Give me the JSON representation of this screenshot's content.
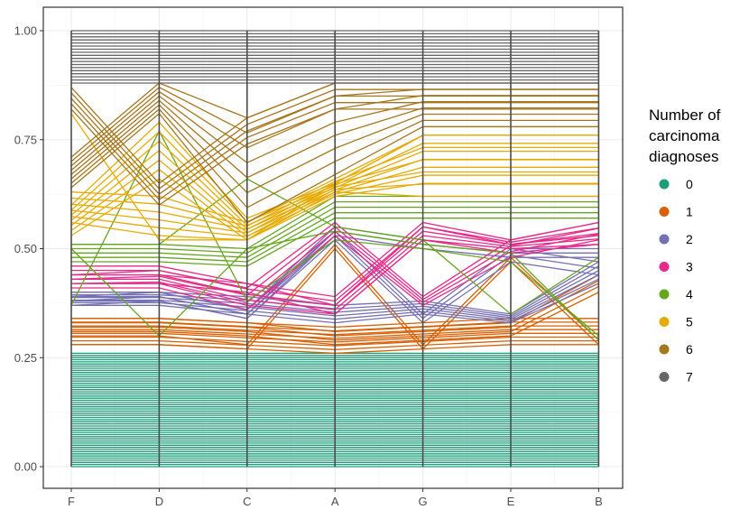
{
  "chart_data": {
    "type": "line",
    "subtype": "parallel-coordinates",
    "categories": [
      "F",
      "D",
      "C",
      "A",
      "G",
      "E",
      "B"
    ],
    "ylim": [
      0,
      1
    ],
    "y_ticks": [
      "0.00",
      "0.25",
      "0.50",
      "0.75",
      "1.00"
    ],
    "grid": true,
    "legend_placement": "right",
    "legend": {
      "title": [
        "Number of",
        "carcinoma",
        "diagnoses"
      ],
      "items": [
        {
          "label": "0",
          "color": "#1B9E77"
        },
        {
          "label": "1",
          "color": "#D95F02"
        },
        {
          "label": "2",
          "color": "#7570B3"
        },
        {
          "label": "3",
          "color": "#E7298A"
        },
        {
          "label": "4",
          "color": "#66A61E"
        },
        {
          "label": "5",
          "color": "#E6AB02"
        },
        {
          "label": "6",
          "color": "#A6761D"
        },
        {
          "label": "7",
          "color": "#666666"
        }
      ]
    },
    "bundles": [
      {
        "group": "0",
        "count": 54,
        "ranges": [
          [
            0,
            0.26
          ],
          [
            0,
            0.26
          ],
          [
            0,
            0.26
          ],
          [
            0,
            0.26
          ],
          [
            0,
            0.26
          ],
          [
            0,
            0.26
          ],
          [
            0,
            0.26
          ]
        ]
      },
      {
        "group": "1",
        "count": 8,
        "ranges": [
          [
            0.28,
            0.34
          ],
          [
            0.28,
            0.34
          ],
          [
            0.27,
            0.33
          ],
          [
            0.26,
            0.32
          ],
          [
            0.27,
            0.33
          ],
          [
            0.28,
            0.34
          ],
          [
            0.28,
            0.34
          ]
        ]
      },
      {
        "group": "1",
        "count": 2,
        "ranges": [
          [
            0.28,
            0.3
          ],
          [
            0.28,
            0.3
          ],
          [
            0.27,
            0.28
          ],
          [
            0.5,
            0.51
          ],
          [
            0.27,
            0.28
          ],
          [
            0.47,
            0.48
          ],
          [
            0.28,
            0.29
          ]
        ]
      },
      {
        "group": "1",
        "count": 4,
        "ranges": [
          [
            0.31,
            0.34
          ],
          [
            0.31,
            0.34
          ],
          [
            0.3,
            0.33
          ],
          [
            0.28,
            0.31
          ],
          [
            0.29,
            0.32
          ],
          [
            0.3,
            0.33
          ],
          [
            0.4,
            0.44
          ]
        ]
      },
      {
        "group": "2",
        "count": 6,
        "ranges": [
          [
            0.37,
            0.4
          ],
          [
            0.37,
            0.4
          ],
          [
            0.35,
            0.39
          ],
          [
            0.33,
            0.37
          ],
          [
            0.35,
            0.38
          ],
          [
            0.33,
            0.35
          ],
          [
            0.42,
            0.47
          ]
        ]
      },
      {
        "group": "2",
        "count": 3,
        "ranges": [
          [
            0.37,
            0.39
          ],
          [
            0.38,
            0.4
          ],
          [
            0.34,
            0.36
          ],
          [
            0.52,
            0.54
          ],
          [
            0.33,
            0.35
          ],
          [
            0.47,
            0.5
          ],
          [
            0.44,
            0.47
          ]
        ]
      },
      {
        "group": "2",
        "count": 3,
        "ranges": [
          [
            0.38,
            0.4
          ],
          [
            0.38,
            0.4
          ],
          [
            0.34,
            0.36
          ],
          [
            0.53,
            0.55
          ],
          [
            0.5,
            0.52
          ],
          [
            0.48,
            0.5
          ],
          [
            0.48,
            0.5
          ]
        ]
      },
      {
        "group": "3",
        "count": 5,
        "ranges": [
          [
            0.42,
            0.46
          ],
          [
            0.42,
            0.46
          ],
          [
            0.37,
            0.42
          ],
          [
            0.35,
            0.39
          ],
          [
            0.52,
            0.56
          ],
          [
            0.5,
            0.52
          ],
          [
            0.51,
            0.56
          ]
        ]
      },
      {
        "group": "3",
        "count": 4,
        "ranges": [
          [
            0.41,
            0.44
          ],
          [
            0.41,
            0.45
          ],
          [
            0.36,
            0.41
          ],
          [
            0.53,
            0.56
          ],
          [
            0.37,
            0.39
          ],
          [
            0.48,
            0.52
          ],
          [
            0.52,
            0.56
          ]
        ]
      },
      {
        "group": "3",
        "count": 2,
        "ranges": [
          [
            0.42,
            0.44
          ],
          [
            0.42,
            0.44
          ],
          [
            0.4,
            0.42
          ],
          [
            0.35,
            0.37
          ],
          [
            0.52,
            0.55
          ],
          [
            0.49,
            0.51
          ],
          [
            0.51,
            0.53
          ]
        ]
      },
      {
        "group": "4",
        "count": 5,
        "ranges": [
          [
            0.47,
            0.51
          ],
          [
            0.47,
            0.51
          ],
          [
            0.46,
            0.5
          ],
          [
            0.57,
            0.62
          ],
          [
            0.57,
            0.62
          ],
          [
            0.57,
            0.62
          ],
          [
            0.57,
            0.62
          ]
        ]
      },
      {
        "group": "4",
        "count": 1,
        "ranges": [
          [
            0.37,
            0.37
          ],
          [
            0.77,
            0.77
          ],
          [
            0.38,
            0.38
          ],
          [
            0.52,
            0.52
          ],
          [
            0.5,
            0.5
          ],
          [
            0.47,
            0.47
          ],
          [
            0.3,
            0.3
          ]
        ]
      },
      {
        "group": "4",
        "count": 1,
        "ranges": [
          [
            0.51,
            0.51
          ],
          [
            0.51,
            0.51
          ],
          [
            0.66,
            0.66
          ],
          [
            0.55,
            0.55
          ],
          [
            0.52,
            0.52
          ],
          [
            0.35,
            0.35
          ],
          [
            0.48,
            0.48
          ]
        ]
      },
      {
        "group": "4",
        "count": 1,
        "ranges": [
          [
            0.5,
            0.5
          ],
          [
            0.3,
            0.3
          ],
          [
            0.5,
            0.5
          ],
          [
            0.54,
            0.54
          ],
          [
            0.51,
            0.51
          ],
          [
            0.49,
            0.49
          ],
          [
            0.29,
            0.29
          ]
        ]
      },
      {
        "group": "5",
        "count": 6,
        "ranges": [
          [
            0.56,
            0.63
          ],
          [
            0.53,
            0.62
          ],
          [
            0.52,
            0.56
          ],
          [
            0.63,
            0.66
          ],
          [
            0.62,
            0.76
          ],
          [
            0.62,
            0.76
          ],
          [
            0.62,
            0.76
          ]
        ]
      },
      {
        "group": "5",
        "count": 7,
        "ranges": [
          [
            0.53,
            0.6
          ],
          [
            0.66,
            0.79
          ],
          [
            0.52,
            0.57
          ],
          [
            0.62,
            0.65
          ],
          [
            0.65,
            0.76
          ],
          [
            0.65,
            0.76
          ],
          [
            0.65,
            0.76
          ]
        ]
      },
      {
        "group": "5",
        "count": 1,
        "ranges": [
          [
            0.81,
            0.81
          ],
          [
            0.52,
            0.52
          ],
          [
            0.52,
            0.52
          ],
          [
            0.65,
            0.65
          ],
          [
            0.76,
            0.76
          ],
          [
            0.76,
            0.76
          ],
          [
            0.76,
            0.76
          ]
        ]
      },
      {
        "group": "6",
        "count": 8,
        "ranges": [
          [
            0.64,
            0.71
          ],
          [
            0.81,
            0.88
          ],
          [
            0.56,
            0.8
          ],
          [
            0.67,
            0.88
          ],
          [
            0.78,
            0.88
          ],
          [
            0.78,
            0.88
          ],
          [
            0.78,
            0.88
          ]
        ]
      },
      {
        "group": "6",
        "count": 5,
        "ranges": [
          [
            0.82,
            0.87
          ],
          [
            0.6,
            0.65
          ],
          [
            0.74,
            0.8
          ],
          [
            0.82,
            0.88
          ],
          [
            0.82,
            0.88
          ],
          [
            0.82,
            0.88
          ],
          [
            0.82,
            0.88
          ]
        ]
      },
      {
        "group": "7",
        "count": 18,
        "ranges": [
          [
            0.88,
            1
          ],
          [
            0.88,
            1
          ],
          [
            0.88,
            1
          ],
          [
            0.88,
            1
          ],
          [
            0.88,
            1
          ],
          [
            0.88,
            1
          ],
          [
            0.88,
            1
          ]
        ]
      }
    ]
  }
}
